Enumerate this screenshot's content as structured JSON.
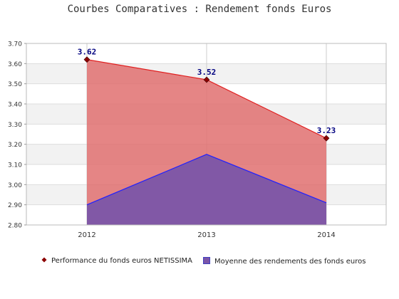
{
  "chart_data": {
    "type": "area",
    "title": "Courbes Comparatives : Rendement fonds Euros",
    "categories": [
      "2012",
      "2013",
      "2014"
    ],
    "ylim": [
      2.8,
      3.7
    ],
    "yticks": [
      "2.80",
      "2.90",
      "3.00",
      "3.10",
      "3.20",
      "3.30",
      "3.40",
      "3.50",
      "3.60",
      "3.70"
    ],
    "grid": true,
    "legend_position": "bottom",
    "series": [
      {
        "name": "Performance du fonds euros NETISSIMA",
        "values": [
          3.62,
          3.52,
          3.23
        ],
        "data_labels": [
          "3.62",
          "3.52",
          "3.23"
        ],
        "line_color": "#e02020",
        "fill_color": "#e07070",
        "marker_color": "#8b0000"
      },
      {
        "name": "Moyenne des rendements des fonds euros",
        "values": [
          2.9,
          3.15,
          2.91
        ],
        "line_color": "#2020ff",
        "fill_color": "#7b55a8"
      }
    ]
  }
}
